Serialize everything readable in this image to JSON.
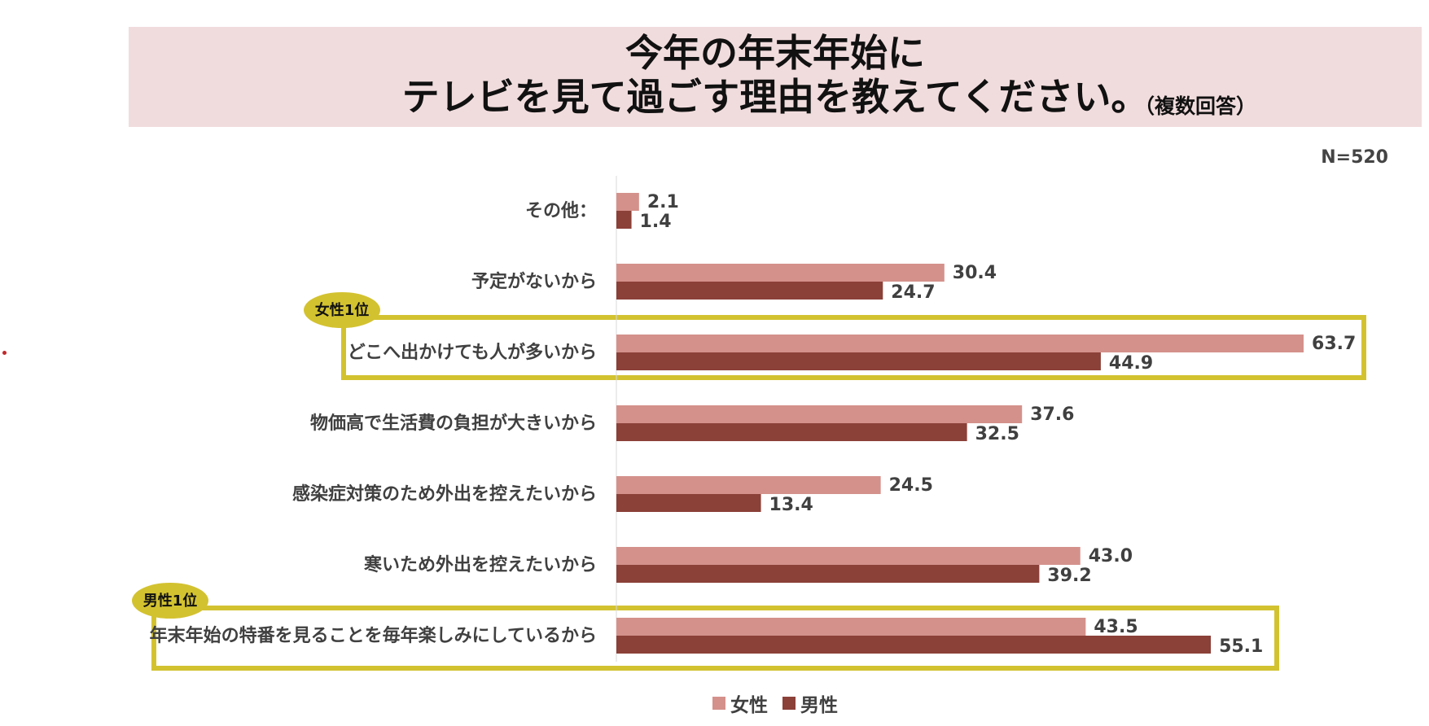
{
  "header": {
    "title_line1": "今年の年末年始に",
    "title_line2": "テレビを見て過ごす理由を教えてください。",
    "subtitle": "（複数回答）"
  },
  "n_label": "N=520",
  "badges": {
    "female_top": "女性1位",
    "male_top": "男性1位"
  },
  "colors": {
    "female": "#d4918b",
    "male": "#8b4038",
    "highlight": "#d3c230",
    "title_band": "#f1dcdd"
  },
  "chart_data": {
    "type": "bar",
    "orientation": "horizontal",
    "categories": [
      "その他：",
      "予定がないから",
      "どこへ出かけても人が多いから",
      "物価高で生活費の負担が大きいから",
      "感染症対策のため外出を控えたいから",
      "寒いため外出を控えたいから",
      "年末年始の特番を見ることを毎年楽しみにしているから"
    ],
    "series": [
      {
        "name": "女性",
        "values": [
          2.1,
          30.4,
          63.7,
          37.6,
          24.5,
          43.0,
          43.5
        ]
      },
      {
        "name": "男性",
        "values": [
          1.4,
          24.7,
          44.9,
          32.5,
          13.4,
          39.2,
          55.1
        ]
      }
    ],
    "highlighted_categories": [
      "どこへ出かけても人が多いから",
      "年末年始の特番を見ることを毎年楽しみにしているから"
    ],
    "legend_position": "bottom",
    "grid": false
  }
}
